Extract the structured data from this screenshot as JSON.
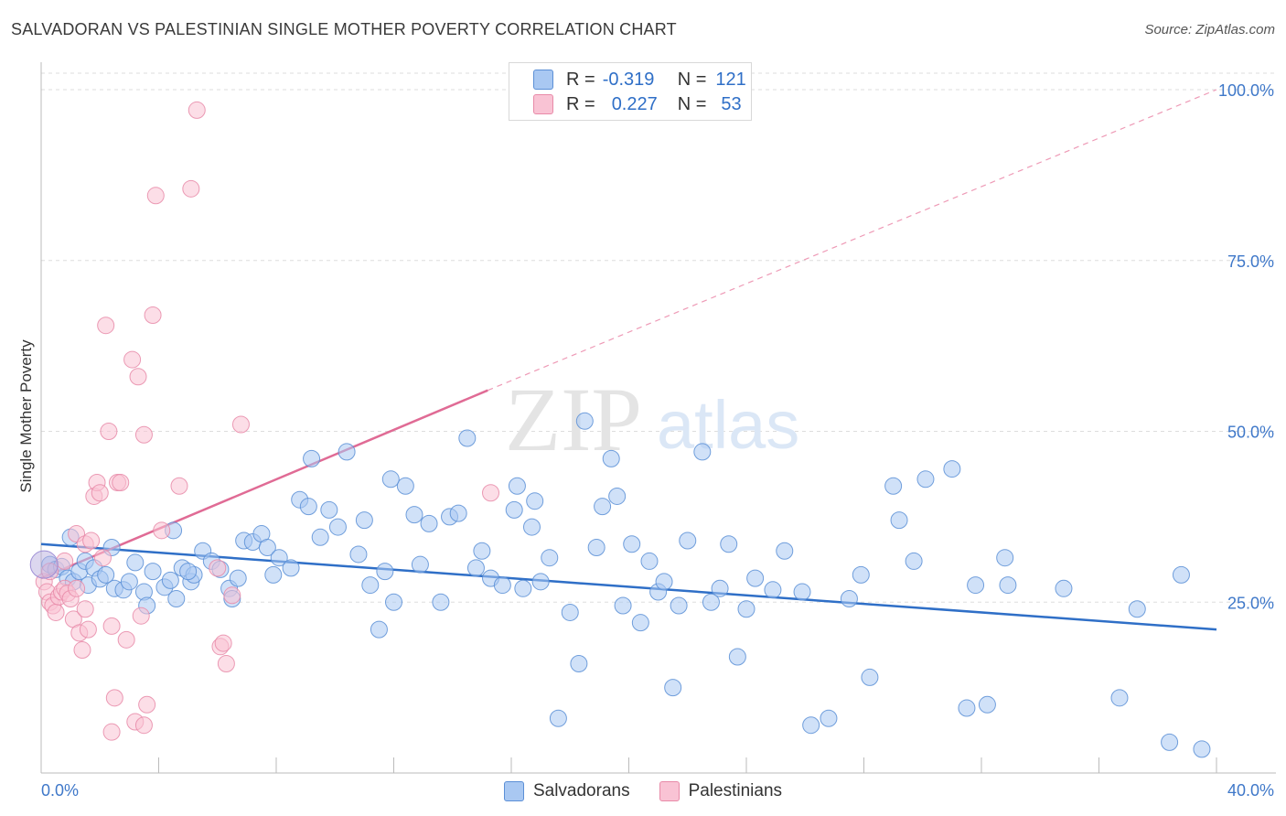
{
  "title": "SALVADORAN VS PALESTINIAN SINGLE MOTHER POVERTY CORRELATION CHART",
  "source": "Source: ZipAtlas.com",
  "watermark": {
    "zip": "ZIP",
    "atlas": "atlas"
  },
  "legend": {
    "rows": [
      {
        "r_label": "R =",
        "r_value": "-0.319",
        "n_label": "N =",
        "n_value": "121",
        "color": "#a9c8f2",
        "border": "#5b8fd6"
      },
      {
        "r_label": "R =",
        "r_value": "0.227",
        "n_label": "N =",
        "n_value": "53",
        "color": "#f9c3d4",
        "border": "#e88aa8"
      }
    ]
  },
  "bottom_legend": [
    "Salvadorans",
    "Palestinians"
  ],
  "chart_data": {
    "type": "scatter",
    "ylabel": "Single Mother Poverty",
    "xlim": [
      0,
      40
    ],
    "ylim": [
      0,
      100
    ],
    "x_tick_labels": [
      "0.0%",
      "40.0%"
    ],
    "y_tick_labels": [
      "25.0%",
      "50.0%",
      "75.0%",
      "100.0%"
    ],
    "y_ticks": [
      25,
      50,
      75,
      100
    ],
    "grid": true,
    "series": [
      {
        "name": "Salvadorans",
        "color": "#5b8fd6",
        "fill": "#a9c8f2",
        "trend": {
          "x0": 0,
          "y0": 33.5,
          "x1": 40,
          "y1": 21.0,
          "extend_dashed": false
        },
        "points": [
          [
            0.3,
            30.5
          ],
          [
            0.5,
            29.8
          ],
          [
            0.7,
            30.2
          ],
          [
            0.9,
            28.5
          ],
          [
            1.1,
            28.0
          ],
          [
            1.3,
            29.5
          ],
          [
            1.5,
            31.0
          ],
          [
            1.6,
            27.5
          ],
          [
            1.8,
            30.0
          ],
          [
            2.0,
            28.4
          ],
          [
            2.2,
            29.0
          ],
          [
            2.5,
            27.0
          ],
          [
            2.8,
            26.8
          ],
          [
            3.0,
            28.0
          ],
          [
            3.2,
            30.8
          ],
          [
            3.5,
            26.5
          ],
          [
            3.8,
            29.5
          ],
          [
            4.2,
            27.2
          ],
          [
            4.4,
            28.2
          ],
          [
            4.6,
            25.5
          ],
          [
            4.8,
            30.0
          ],
          [
            5.1,
            28.0
          ],
          [
            5.2,
            29.0
          ],
          [
            5.5,
            32.5
          ],
          [
            5.8,
            31.0
          ],
          [
            6.1,
            29.8
          ],
          [
            6.4,
            27.0
          ],
          [
            6.5,
            25.5
          ],
          [
            6.7,
            28.5
          ],
          [
            6.9,
            34.0
          ],
          [
            7.2,
            33.8
          ],
          [
            7.5,
            35.0
          ],
          [
            7.7,
            33.0
          ],
          [
            8.1,
            31.5
          ],
          [
            8.5,
            30.0
          ],
          [
            8.8,
            40.0
          ],
          [
            9.1,
            39.0
          ],
          [
            9.2,
            46.0
          ],
          [
            9.5,
            34.5
          ],
          [
            9.8,
            38.5
          ],
          [
            10.1,
            36.0
          ],
          [
            10.4,
            47.0
          ],
          [
            10.8,
            32.0
          ],
          [
            11.0,
            37.0
          ],
          [
            11.2,
            27.5
          ],
          [
            11.5,
            21.0
          ],
          [
            11.7,
            29.5
          ],
          [
            12.0,
            25.0
          ],
          [
            12.4,
            42.0
          ],
          [
            12.7,
            37.8
          ],
          [
            12.9,
            30.5
          ],
          [
            13.2,
            36.5
          ],
          [
            13.6,
            25.0
          ],
          [
            13.9,
            37.5
          ],
          [
            14.2,
            38.0
          ],
          [
            14.5,
            49.0
          ],
          [
            14.8,
            30.0
          ],
          [
            15.0,
            32.5
          ],
          [
            15.3,
            28.5
          ],
          [
            15.7,
            27.5
          ],
          [
            16.1,
            38.5
          ],
          [
            16.4,
            27.0
          ],
          [
            16.7,
            36.0
          ],
          [
            16.8,
            39.8
          ],
          [
            17.0,
            28.0
          ],
          [
            17.3,
            31.5
          ],
          [
            17.6,
            8.0
          ],
          [
            18.0,
            23.5
          ],
          [
            18.3,
            16.0
          ],
          [
            18.5,
            51.5
          ],
          [
            18.9,
            33.0
          ],
          [
            19.1,
            39.0
          ],
          [
            19.4,
            46.0
          ],
          [
            19.6,
            40.5
          ],
          [
            19.8,
            24.5
          ],
          [
            20.1,
            33.5
          ],
          [
            20.4,
            22.0
          ],
          [
            20.7,
            31.0
          ],
          [
            21.0,
            26.5
          ],
          [
            21.2,
            28.0
          ],
          [
            21.5,
            12.5
          ],
          [
            21.7,
            24.5
          ],
          [
            22.0,
            34.0
          ],
          [
            22.5,
            47.0
          ],
          [
            22.8,
            25.0
          ],
          [
            23.1,
            27.0
          ],
          [
            23.4,
            33.5
          ],
          [
            23.7,
            17.0
          ],
          [
            24.0,
            24.0
          ],
          [
            24.3,
            28.5
          ],
          [
            24.9,
            26.8
          ],
          [
            25.3,
            32.5
          ],
          [
            25.9,
            26.5
          ],
          [
            26.2,
            7.0
          ],
          [
            26.8,
            8.0
          ],
          [
            27.5,
            25.5
          ],
          [
            27.9,
            29.0
          ],
          [
            28.2,
            14.0
          ],
          [
            29.0,
            42.0
          ],
          [
            29.2,
            37.0
          ],
          [
            29.7,
            31.0
          ],
          [
            30.1,
            43.0
          ],
          [
            31.0,
            44.5
          ],
          [
            31.5,
            9.5
          ],
          [
            31.8,
            27.5
          ],
          [
            32.9,
            27.5
          ],
          [
            32.2,
            10.0
          ],
          [
            32.8,
            31.5
          ],
          [
            34.8,
            27.0
          ],
          [
            36.7,
            11.0
          ],
          [
            37.3,
            24.0
          ],
          [
            38.4,
            4.5
          ],
          [
            38.8,
            29.0
          ],
          [
            39.5,
            3.5
          ],
          [
            11.9,
            43.0
          ],
          [
            16.2,
            42.0
          ],
          [
            5.0,
            29.5
          ],
          [
            3.6,
            24.5
          ],
          [
            7.9,
            29.0
          ],
          [
            1.0,
            34.5
          ],
          [
            2.4,
            33.0
          ],
          [
            4.5,
            35.5
          ]
        ]
      },
      {
        "name": "Palestinians",
        "color": "#e88aa8",
        "fill": "#f9c3d4",
        "trend": {
          "x0": 0,
          "y0": 28.5,
          "x1": 15.2,
          "y1": 56.0,
          "extend_dashed": true,
          "dash_x1": 40,
          "dash_y1": 100
        },
        "points": [
          [
            0.1,
            28.0
          ],
          [
            0.2,
            26.5
          ],
          [
            0.3,
            25.0
          ],
          [
            0.4,
            24.5
          ],
          [
            0.5,
            23.5
          ],
          [
            0.6,
            25.8
          ],
          [
            0.7,
            26.5
          ],
          [
            0.8,
            27.0
          ],
          [
            0.9,
            26.3
          ],
          [
            1.0,
            25.5
          ],
          [
            1.1,
            22.5
          ],
          [
            1.2,
            35.0
          ],
          [
            1.3,
            20.5
          ],
          [
            1.4,
            18.0
          ],
          [
            1.5,
            33.5
          ],
          [
            1.6,
            21.0
          ],
          [
            1.7,
            34.0
          ],
          [
            1.8,
            40.5
          ],
          [
            1.9,
            42.5
          ],
          [
            2.0,
            41.0
          ],
          [
            2.1,
            31.5
          ],
          [
            2.2,
            65.5
          ],
          [
            2.3,
            50.0
          ],
          [
            2.4,
            21.5
          ],
          [
            2.5,
            11.0
          ],
          [
            2.6,
            42.5
          ],
          [
            2.7,
            42.5
          ],
          [
            2.9,
            19.5
          ],
          [
            3.1,
            60.5
          ],
          [
            3.3,
            58.0
          ],
          [
            3.4,
            23.0
          ],
          [
            3.5,
            49.5
          ],
          [
            3.6,
            10.0
          ],
          [
            3.8,
            67.0
          ],
          [
            3.9,
            84.5
          ],
          [
            4.1,
            35.5
          ],
          [
            4.7,
            42.0
          ],
          [
            5.1,
            85.5
          ],
          [
            5.3,
            97.0
          ],
          [
            6.0,
            30.0
          ],
          [
            6.1,
            18.5
          ],
          [
            6.2,
            19.0
          ],
          [
            6.3,
            16.0
          ],
          [
            6.5,
            26.0
          ],
          [
            6.8,
            51.0
          ],
          [
            15.3,
            41.0
          ],
          [
            2.4,
            6.0
          ],
          [
            3.2,
            7.5
          ],
          [
            1.5,
            24.0
          ],
          [
            0.8,
            31.0
          ],
          [
            1.2,
            27.0
          ],
          [
            0.3,
            29.5
          ],
          [
            3.5,
            7.0
          ]
        ]
      }
    ]
  }
}
